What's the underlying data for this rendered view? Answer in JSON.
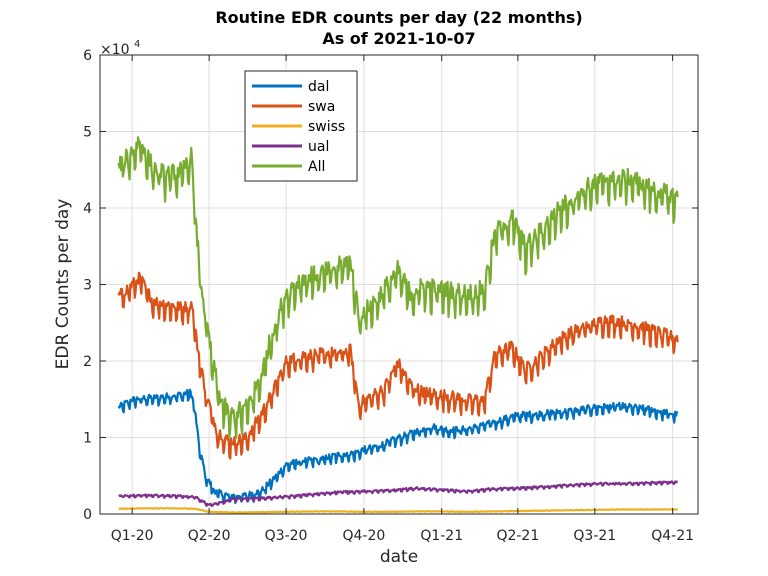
{
  "chart_data": {
    "type": "line",
    "title": "Routine EDR counts per day (22 months)",
    "subtitle": "As of 2021-10-07",
    "xlabel": "date",
    "ylabel": "EDR Counts per day",
    "y_multiplier_label": "×10",
    "y_multiplier_exp": "4",
    "xlim": [
      "2019-11-24",
      "2021-10-31"
    ],
    "ylim": [
      0,
      60000
    ],
    "grid": true,
    "legend_position": "top-left inside",
    "x_ticks": [
      {
        "label": "Q1-20",
        "date": "2020-01-01"
      },
      {
        "label": "Q2-20",
        "date": "2020-04-01"
      },
      {
        "label": "Q3-20",
        "date": "2020-07-01"
      },
      {
        "label": "Q4-20",
        "date": "2020-10-01"
      },
      {
        "label": "Q1-21",
        "date": "2021-01-01"
      },
      {
        "label": "Q2-21",
        "date": "2021-04-01"
      },
      {
        "label": "Q3-21",
        "date": "2021-07-01"
      },
      {
        "label": "Q4-21",
        "date": "2021-10-01"
      }
    ],
    "y_ticks": [
      {
        "label": "0",
        "value": 0
      },
      {
        "label": "1",
        "value": 10000
      },
      {
        "label": "2",
        "value": 20000
      },
      {
        "label": "3",
        "value": 30000
      },
      {
        "label": "4",
        "value": 40000
      },
      {
        "label": "5",
        "value": 50000
      },
      {
        "label": "6",
        "value": 60000
      }
    ],
    "series": [
      {
        "name": "dal",
        "color": "#0072BD",
        "points": [
          [
            "2019-12-16",
            14000
          ],
          [
            "2020-01-01",
            15000
          ],
          [
            "2020-01-15",
            15200
          ],
          [
            "2020-02-01",
            15300
          ],
          [
            "2020-02-15",
            15500
          ],
          [
            "2020-03-01",
            15700
          ],
          [
            "2020-03-10",
            16000
          ],
          [
            "2020-03-15",
            14000
          ],
          [
            "2020-03-20",
            9000
          ],
          [
            "2020-03-28",
            5000
          ],
          [
            "2020-04-08",
            3000
          ],
          [
            "2020-04-25",
            2400
          ],
          [
            "2020-05-15",
            2500
          ],
          [
            "2020-06-01",
            3000
          ],
          [
            "2020-06-15",
            4500
          ],
          [
            "2020-07-01",
            6500
          ],
          [
            "2020-07-20",
            7000
          ],
          [
            "2020-08-10",
            7200
          ],
          [
            "2020-09-01",
            7800
          ],
          [
            "2020-09-20",
            8000
          ],
          [
            "2020-10-01",
            8500
          ],
          [
            "2020-10-20",
            9000
          ],
          [
            "2020-11-10",
            10000
          ],
          [
            "2020-12-01",
            10800
          ],
          [
            "2020-12-20",
            11500
          ],
          [
            "2021-01-10",
            11000
          ],
          [
            "2021-02-01",
            11200
          ],
          [
            "2021-03-01",
            12000
          ],
          [
            "2021-04-01",
            13000
          ],
          [
            "2021-05-01",
            13200
          ],
          [
            "2021-06-01",
            13500
          ],
          [
            "2021-07-01",
            14000
          ],
          [
            "2021-08-01",
            14200
          ],
          [
            "2021-09-01",
            13800
          ],
          [
            "2021-10-07",
            13000
          ]
        ]
      },
      {
        "name": "swa",
        "color": "#D95319",
        "points": [
          [
            "2019-12-16",
            28500
          ],
          [
            "2020-01-01",
            30000
          ],
          [
            "2020-01-10",
            31000
          ],
          [
            "2020-01-25",
            28000
          ],
          [
            "2020-02-10",
            27500
          ],
          [
            "2020-03-01",
            27000
          ],
          [
            "2020-03-12",
            27500
          ],
          [
            "2020-03-18",
            22000
          ],
          [
            "2020-03-28",
            16000
          ],
          [
            "2020-04-10",
            11000
          ],
          [
            "2020-04-25",
            9500
          ],
          [
            "2020-05-15",
            10000
          ],
          [
            "2020-06-01",
            13000
          ],
          [
            "2020-06-15",
            16000
          ],
          [
            "2020-07-01",
            20000
          ],
          [
            "2020-07-20",
            20800
          ],
          [
            "2020-08-10",
            21000
          ],
          [
            "2020-09-01",
            21200
          ],
          [
            "2020-09-15",
            21500
          ],
          [
            "2020-09-25",
            14500
          ],
          [
            "2020-10-10",
            15500
          ],
          [
            "2020-10-25",
            16500
          ],
          [
            "2020-11-10",
            20000
          ],
          [
            "2020-11-25",
            17000
          ],
          [
            "2020-12-10",
            16000
          ],
          [
            "2021-01-10",
            15500
          ],
          [
            "2021-02-01",
            15000
          ],
          [
            "2021-02-20",
            15000
          ],
          [
            "2021-03-05",
            21000
          ],
          [
            "2021-03-25",
            22000
          ],
          [
            "2021-04-10",
            19000
          ],
          [
            "2021-05-01",
            21000
          ],
          [
            "2021-05-20",
            23000
          ],
          [
            "2021-06-15",
            24500
          ],
          [
            "2021-07-15",
            25500
          ],
          [
            "2021-08-15",
            25000
          ],
          [
            "2021-09-10",
            24000
          ],
          [
            "2021-10-07",
            23000
          ]
        ]
      },
      {
        "name": "swiss",
        "color": "#EDB120",
        "points": [
          [
            "2019-12-16",
            700
          ],
          [
            "2020-01-15",
            750
          ],
          [
            "2020-02-15",
            750
          ],
          [
            "2020-03-15",
            700
          ],
          [
            "2020-04-01",
            300
          ],
          [
            "2020-05-01",
            200
          ],
          [
            "2020-06-01",
            250
          ],
          [
            "2020-07-01",
            300
          ],
          [
            "2020-08-01",
            350
          ],
          [
            "2020-09-01",
            350
          ],
          [
            "2020-10-01",
            300
          ],
          [
            "2020-11-01",
            300
          ],
          [
            "2020-12-01",
            350
          ],
          [
            "2021-01-01",
            350
          ],
          [
            "2021-02-01",
            300
          ],
          [
            "2021-03-01",
            350
          ],
          [
            "2021-04-01",
            400
          ],
          [
            "2021-05-01",
            450
          ],
          [
            "2021-06-01",
            500
          ],
          [
            "2021-07-01",
            550
          ],
          [
            "2021-08-01",
            600
          ],
          [
            "2021-09-01",
            600
          ],
          [
            "2021-10-07",
            600
          ]
        ]
      },
      {
        "name": "ual",
        "color": "#7E2F8E",
        "points": [
          [
            "2019-12-16",
            2400
          ],
          [
            "2020-01-15",
            2500
          ],
          [
            "2020-02-15",
            2400
          ],
          [
            "2020-03-15",
            2300
          ],
          [
            "2020-04-01",
            1200
          ],
          [
            "2020-04-15",
            1500
          ],
          [
            "2020-05-01",
            2000
          ],
          [
            "2020-06-01",
            2100
          ],
          [
            "2020-07-01",
            2300
          ],
          [
            "2020-08-01",
            2600
          ],
          [
            "2020-09-01",
            2900
          ],
          [
            "2020-10-01",
            3000
          ],
          [
            "2020-11-01",
            3100
          ],
          [
            "2020-12-01",
            3400
          ],
          [
            "2021-01-01",
            3200
          ],
          [
            "2021-02-01",
            3000
          ],
          [
            "2021-03-01",
            3300
          ],
          [
            "2021-04-01",
            3400
          ],
          [
            "2021-05-01",
            3600
          ],
          [
            "2021-06-01",
            3800
          ],
          [
            "2021-07-01",
            4000
          ],
          [
            "2021-08-01",
            4000
          ],
          [
            "2021-09-01",
            4100
          ],
          [
            "2021-10-07",
            4200
          ]
        ]
      },
      {
        "name": "All",
        "color": "#77AC30",
        "points": [
          [
            "2019-12-16",
            45500
          ],
          [
            "2020-01-01",
            47500
          ],
          [
            "2020-01-10",
            49000
          ],
          [
            "2020-01-25",
            45500
          ],
          [
            "2020-02-10",
            44500
          ],
          [
            "2020-03-01",
            45000
          ],
          [
            "2020-03-12",
            47000
          ],
          [
            "2020-03-16",
            38000
          ],
          [
            "2020-03-25",
            28000
          ],
          [
            "2020-04-05",
            20000
          ],
          [
            "2020-04-15",
            15000
          ],
          [
            "2020-04-25",
            13000
          ],
          [
            "2020-05-15",
            14000
          ],
          [
            "2020-06-01",
            18000
          ],
          [
            "2020-06-15",
            24000
          ],
          [
            "2020-07-01",
            29000
          ],
          [
            "2020-07-20",
            31000
          ],
          [
            "2020-08-10",
            31500
          ],
          [
            "2020-09-01",
            32500
          ],
          [
            "2020-09-15",
            33500
          ],
          [
            "2020-09-25",
            26000
          ],
          [
            "2020-10-10",
            27500
          ],
          [
            "2020-10-25",
            29500
          ],
          [
            "2020-11-10",
            32000
          ],
          [
            "2020-11-25",
            29000
          ],
          [
            "2020-12-10",
            30000
          ],
          [
            "2021-01-01",
            29500
          ],
          [
            "2021-02-01",
            29000
          ],
          [
            "2021-02-20",
            29500
          ],
          [
            "2021-03-05",
            37000
          ],
          [
            "2021-03-25",
            39000
          ],
          [
            "2021-04-10",
            35000
          ],
          [
            "2021-05-01",
            37500
          ],
          [
            "2021-05-20",
            40000
          ],
          [
            "2021-06-15",
            42500
          ],
          [
            "2021-07-15",
            44000
          ],
          [
            "2021-08-15",
            44000
          ],
          [
            "2021-09-10",
            42500
          ],
          [
            "2021-10-07",
            41500
          ]
        ]
      }
    ]
  }
}
